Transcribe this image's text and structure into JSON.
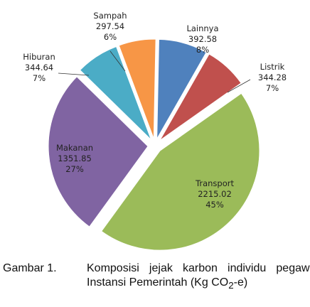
{
  "chart_data": {
    "type": "pie",
    "categories": [
      "Lainnya",
      "Listrik",
      "Transport",
      "Makanan",
      "Hiburan",
      "Sampah"
    ],
    "values": [
      392.58,
      344.28,
      2215.02,
      1351.85,
      344.64,
      297.54
    ],
    "percent_labels": [
      "8%",
      "7%",
      "45%",
      "27%",
      "7%",
      "6%"
    ],
    "colors": [
      "#4f81bd",
      "#c0504d",
      "#9bbb59",
      "#8064a2",
      "#4bacc6",
      "#f79646"
    ]
  },
  "caption": {
    "label": "Gambar 1.",
    "text": "Komposisi jejak karbon individu pegawai Instansi Pemerintah (Kg CO",
    "sub": "2",
    "tail": "-e)"
  }
}
